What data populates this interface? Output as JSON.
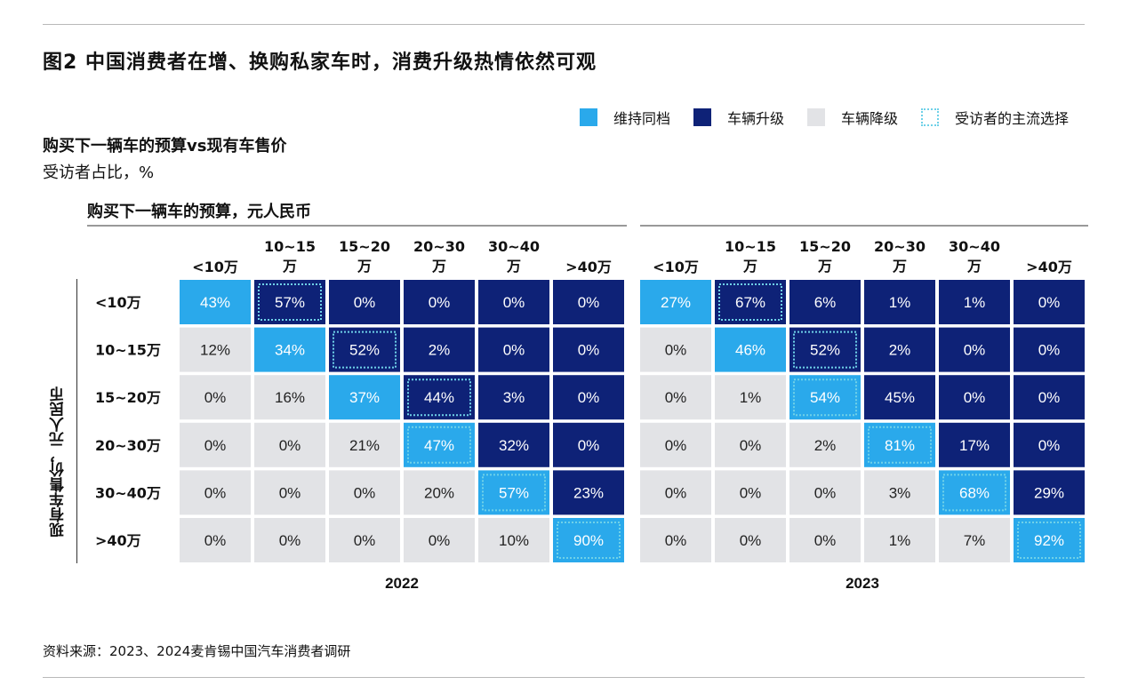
{
  "title": "图2 中国消费者在增、换购私家车时，消费升级热情依然可观",
  "subtitle": "购买下一辆车的预算vs现有车售价",
  "unit": "受访者占比，%",
  "col_axis_title": "购买下一辆车的预算，元人民币",
  "row_axis_title": "现有车售价，元人民币",
  "legend": [
    {
      "label": "维持同档",
      "color": "#2aa9eb",
      "style": "solid"
    },
    {
      "label": "车辆升级",
      "color": "#0e2277",
      "style": "solid"
    },
    {
      "label": "车辆降级",
      "color": "#e2e3e6",
      "style": "solid"
    },
    {
      "label": "受访者的主流选择",
      "color": "#6fd1e8",
      "style": "dotted-outline"
    }
  ],
  "source": "资料来源：2023、2024麦肯锡中国汽车消费者调研",
  "chart_data": {
    "type": "heatmap",
    "title": "图2 中国消费者在增、换购私家车时，消费升级热情依然可观",
    "xlabel": "购买下一辆车的预算，元人民币",
    "ylabel": "现有车售价，元人民币",
    "row_labels": [
      "<10万",
      "10~15万",
      "15~20万",
      "20~30万",
      "30~40万",
      ">40万"
    ],
    "col_labels": [
      [
        "<10万"
      ],
      [
        "10~15",
        "万"
      ],
      [
        "15~20",
        "万"
      ],
      [
        "20~30",
        "万"
      ],
      [
        "30~40",
        "万"
      ],
      [
        ">40万"
      ]
    ],
    "colors": {
      "same": "#2aa9eb",
      "upgrade": "#0e2277",
      "downgrade": "#e2e3e6",
      "highlight": "#6fd1e8"
    },
    "panels": [
      {
        "year": "2022",
        "values": [
          [
            43,
            57,
            0,
            0,
            0,
            0
          ],
          [
            12,
            34,
            52,
            2,
            0,
            0
          ],
          [
            0,
            16,
            37,
            44,
            3,
            0
          ],
          [
            0,
            0,
            21,
            47,
            32,
            0
          ],
          [
            0,
            0,
            0,
            20,
            57,
            23
          ],
          [
            0,
            0,
            0,
            0,
            10,
            90
          ]
        ],
        "mainstream": [
          1,
          2,
          3,
          3,
          4,
          5
        ]
      },
      {
        "year": "2023",
        "values": [
          [
            27,
            67,
            6,
            1,
            1,
            0
          ],
          [
            0,
            46,
            52,
            2,
            0,
            0
          ],
          [
            0,
            1,
            54,
            45,
            0,
            0
          ],
          [
            0,
            0,
            2,
            81,
            17,
            0
          ],
          [
            0,
            0,
            0,
            3,
            68,
            29
          ],
          [
            0,
            0,
            0,
            1,
            7,
            92
          ]
        ],
        "mainstream": [
          1,
          2,
          2,
          3,
          4,
          5
        ]
      }
    ]
  }
}
